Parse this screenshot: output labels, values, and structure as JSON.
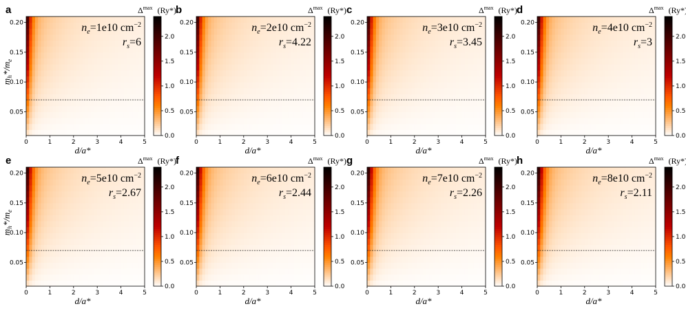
{
  "chart_data": {
    "type": "heatmap",
    "colormap": "gist_heat_r",
    "xlabel": "d/a*",
    "ylabel": "mh*/me",
    "x_ticks": [
      0,
      1,
      2,
      3,
      4,
      5
    ],
    "y_ticks": [
      0.05,
      0.1,
      0.15,
      0.2
    ],
    "xlim": [
      0,
      5
    ],
    "ylim": [
      0.01,
      0.21
    ],
    "dashed_line_y": 0.07,
    "colorbar": {
      "title_symbol": "Δ",
      "title_superscript": "max",
      "title_unit": "(Ry*)",
      "range": [
        0.0,
        2.4
      ],
      "ticks": [
        "0.0",
        "0.5",
        "1.0",
        "1.5",
        "2.0"
      ]
    },
    "panels": [
      {
        "label": "a",
        "ne_value": "1e10 cm",
        "rs": "6"
      },
      {
        "label": "b",
        "ne_value": "2e10 cm",
        "rs": "4.22"
      },
      {
        "label": "c",
        "ne_value": "3e10 cm",
        "rs": "3.45"
      },
      {
        "label": "d",
        "ne_value": "4e10 cm",
        "rs": "3"
      },
      {
        "label": "e",
        "ne_value": "5e10 cm",
        "rs": "2.67"
      },
      {
        "label": "f",
        "ne_value": "6e10 cm",
        "rs": "2.44"
      },
      {
        "label": "g",
        "ne_value": "7e10 cm",
        "rs": "2.26"
      },
      {
        "label": "h",
        "ne_value": "8e10 cm",
        "rs": "2.11"
      }
    ]
  },
  "labels": {
    "ne_symbol": "n",
    "ne_sub": "e",
    "ne_exp": "−2",
    "rs_symbol": "r",
    "rs_sub": "s",
    "xlabel_d": "d",
    "xlabel_rest": "/a*",
    "ylabel_m": "m",
    "ylabel_h": "h",
    "ylabel_star_over": "*/m",
    "ylabel_e": "e"
  }
}
